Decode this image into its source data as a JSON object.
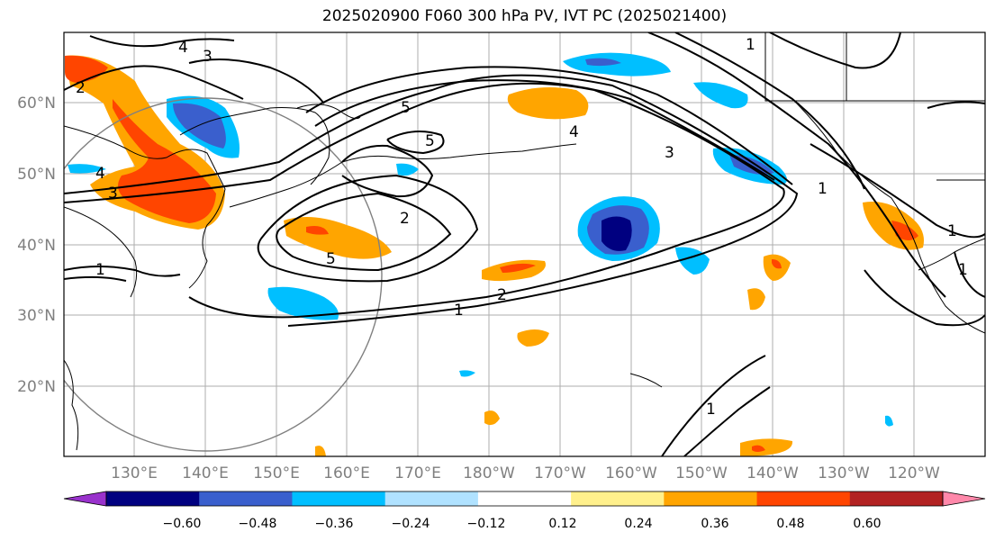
{
  "title": "2025020900 F060 300 hPa PV, IVT PC (2025021400)",
  "map": {
    "lat_ticks": [
      "60°N",
      "50°N",
      "40°N",
      "30°N",
      "20°N"
    ],
    "lon_ticks": [
      "130°E",
      "140°E",
      "150°E",
      "160°E",
      "170°E",
      "180°W",
      "170°W",
      "160°W",
      "150°W",
      "140°W",
      "130°W",
      "120°W"
    ],
    "contour_labels": [
      "4",
      "3",
      "2",
      "1",
      "5",
      "5",
      "4",
      "3",
      "1",
      "2",
      "5",
      "2",
      "1",
      "1",
      "1",
      "1",
      "4",
      "3",
      "1"
    ]
  },
  "colorbar": {
    "ticks": [
      "−0.60",
      "−0.48",
      "−0.36",
      "−0.24",
      "−0.12",
      "0.12",
      "0.24",
      "0.36",
      "0.48",
      "0.60"
    ],
    "colors": [
      "#9932cc",
      "#000080",
      "#3a5fcd",
      "#00bfff",
      "#b0e2ff",
      "#ffffff",
      "#fff08c",
      "#ffa500",
      "#ff4500",
      "#b22222",
      "#ff88aa"
    ]
  }
}
